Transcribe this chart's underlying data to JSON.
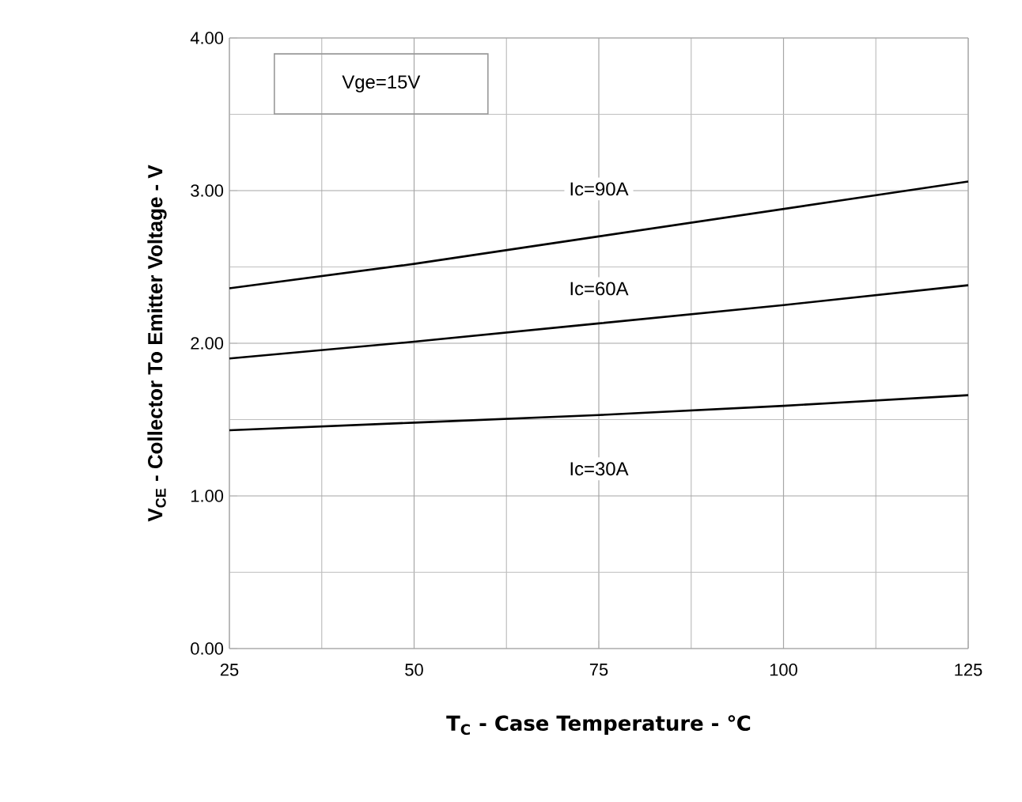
{
  "chart_data": {
    "type": "line",
    "xlabel": "T$_{C}$ - Case Temperature - ℃",
    "ylabel": "V$_{CE}$ - Collector To Emitter Voltage - V",
    "x": [
      25,
      50,
      75,
      100,
      125
    ],
    "series": [
      {
        "name": "Ic=90A",
        "color": "#000000",
        "values": [
          2.36,
          2.52,
          2.7,
          2.88,
          3.06
        ]
      },
      {
        "name": "Ic=60A",
        "color": "#000000",
        "values": [
          1.9,
          2.01,
          2.13,
          2.25,
          2.38
        ]
      },
      {
        "name": "Ic=30A",
        "color": "#000000",
        "values": [
          1.43,
          1.48,
          1.53,
          1.59,
          1.66
        ]
      }
    ],
    "annotations": [
      "Vge=15V"
    ],
    "xlim": [
      25,
      125
    ],
    "ylim": [
      0,
      4
    ],
    "xticks": [
      25,
      50,
      75,
      100,
      125
    ],
    "yticks": [
      {
        "value": 0,
        "label": "0.00"
      },
      {
        "value": 1,
        "label": "1.00"
      },
      {
        "value": 2,
        "label": "2.00"
      },
      {
        "value": 3,
        "label": "3.00"
      },
      {
        "value": 4,
        "label": "4.00"
      }
    ],
    "grid": true,
    "marker": "none",
    "line_style": "solid"
  }
}
